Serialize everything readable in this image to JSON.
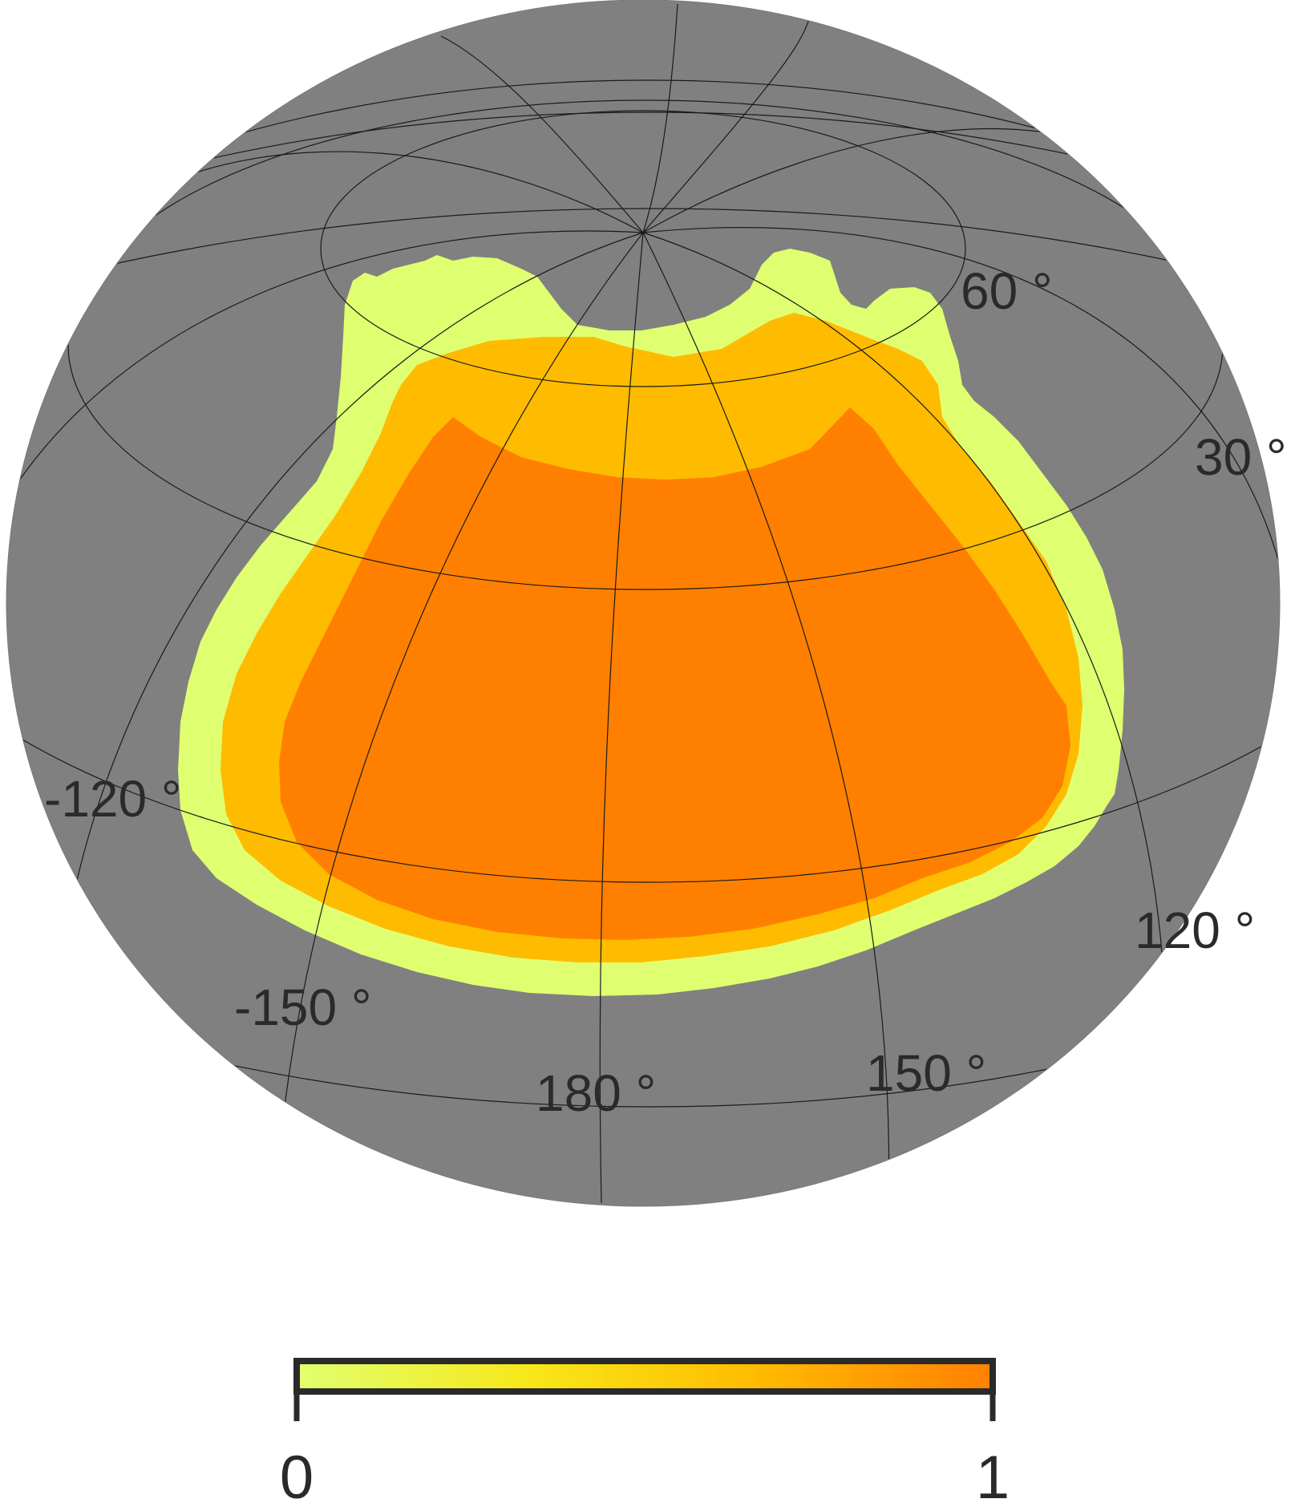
{
  "map": {
    "projection": "orthographic",
    "background_color": "#808080",
    "grid_color": "#1a1a1a",
    "graticule_labels": [
      {
        "id": "lat-60",
        "text": "60 °"
      },
      {
        "id": "lat-30",
        "text": "30 °"
      },
      {
        "id": "lon-neg120",
        "text": "-120 °"
      },
      {
        "id": "lon-neg150",
        "text": "-150 °"
      },
      {
        "id": "lon-180",
        "text": "180 °"
      },
      {
        "id": "lon-150",
        "text": "150 °"
      },
      {
        "id": "lon-120",
        "text": "120 °"
      }
    ],
    "regions": [
      {
        "level": "outer",
        "color": "#e0ff70"
      },
      {
        "level": "middle",
        "color": "#ffbb00"
      },
      {
        "level": "inner",
        "color": "#ff8000"
      }
    ]
  },
  "colorbar": {
    "min_label": "0",
    "max_label": "1",
    "gradient": [
      "#e0ff70",
      "#f7e81a",
      "#ffbb00",
      "#ff8000"
    ]
  }
}
